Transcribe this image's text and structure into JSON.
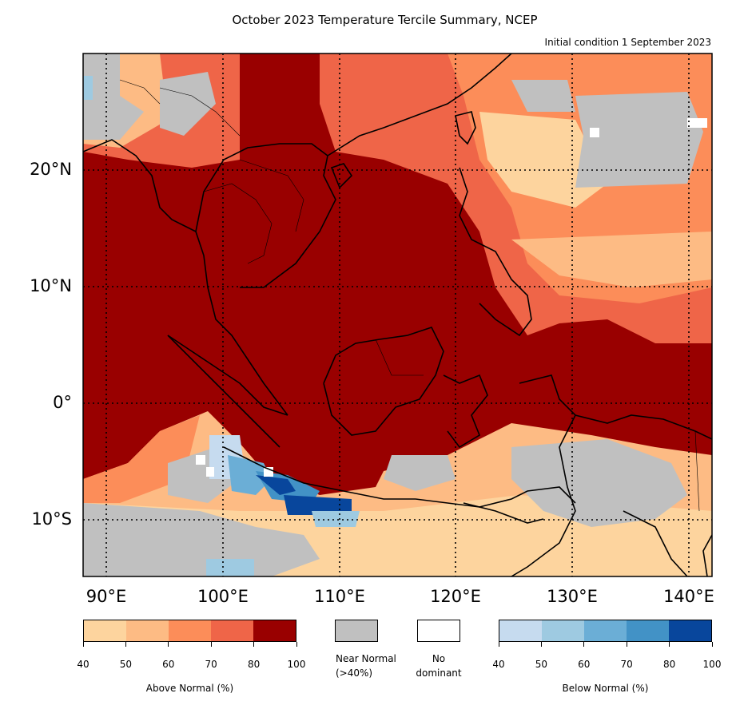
{
  "title": "October 2023 Temperature Tercile Summary, NCEP",
  "subtitle": "Initial condition 1 September 2023",
  "lat_labels": [
    "20°N",
    "10°N",
    "0°",
    "10°S"
  ],
  "lon_labels": [
    "90°E",
    "100°E",
    "110°E",
    "120°E",
    "130°E",
    "140°E"
  ],
  "legend": {
    "above": {
      "caption": "Above Normal (%)",
      "ticks": [
        "40",
        "50",
        "60",
        "70",
        "80",
        "100"
      ],
      "colors": [
        "#fdd49e",
        "#fdbb84",
        "#fc8d59",
        "#ef6548",
        "#990000"
      ]
    },
    "near_normal": {
      "caption_line1": "Near Normal",
      "caption_line2": "(>40%)",
      "color": "#c0c0c0"
    },
    "no_dominant": {
      "caption_line1": "No",
      "caption_line2": "dominant",
      "color": "#ffffff"
    },
    "below": {
      "caption": "Below Normal (%)",
      "ticks": [
        "40",
        "50",
        "60",
        "70",
        "80",
        "100"
      ],
      "colors": [
        "#c6dbef",
        "#9ecae1",
        "#6baed6",
        "#4292c6",
        "#08469c"
      ]
    }
  }
}
